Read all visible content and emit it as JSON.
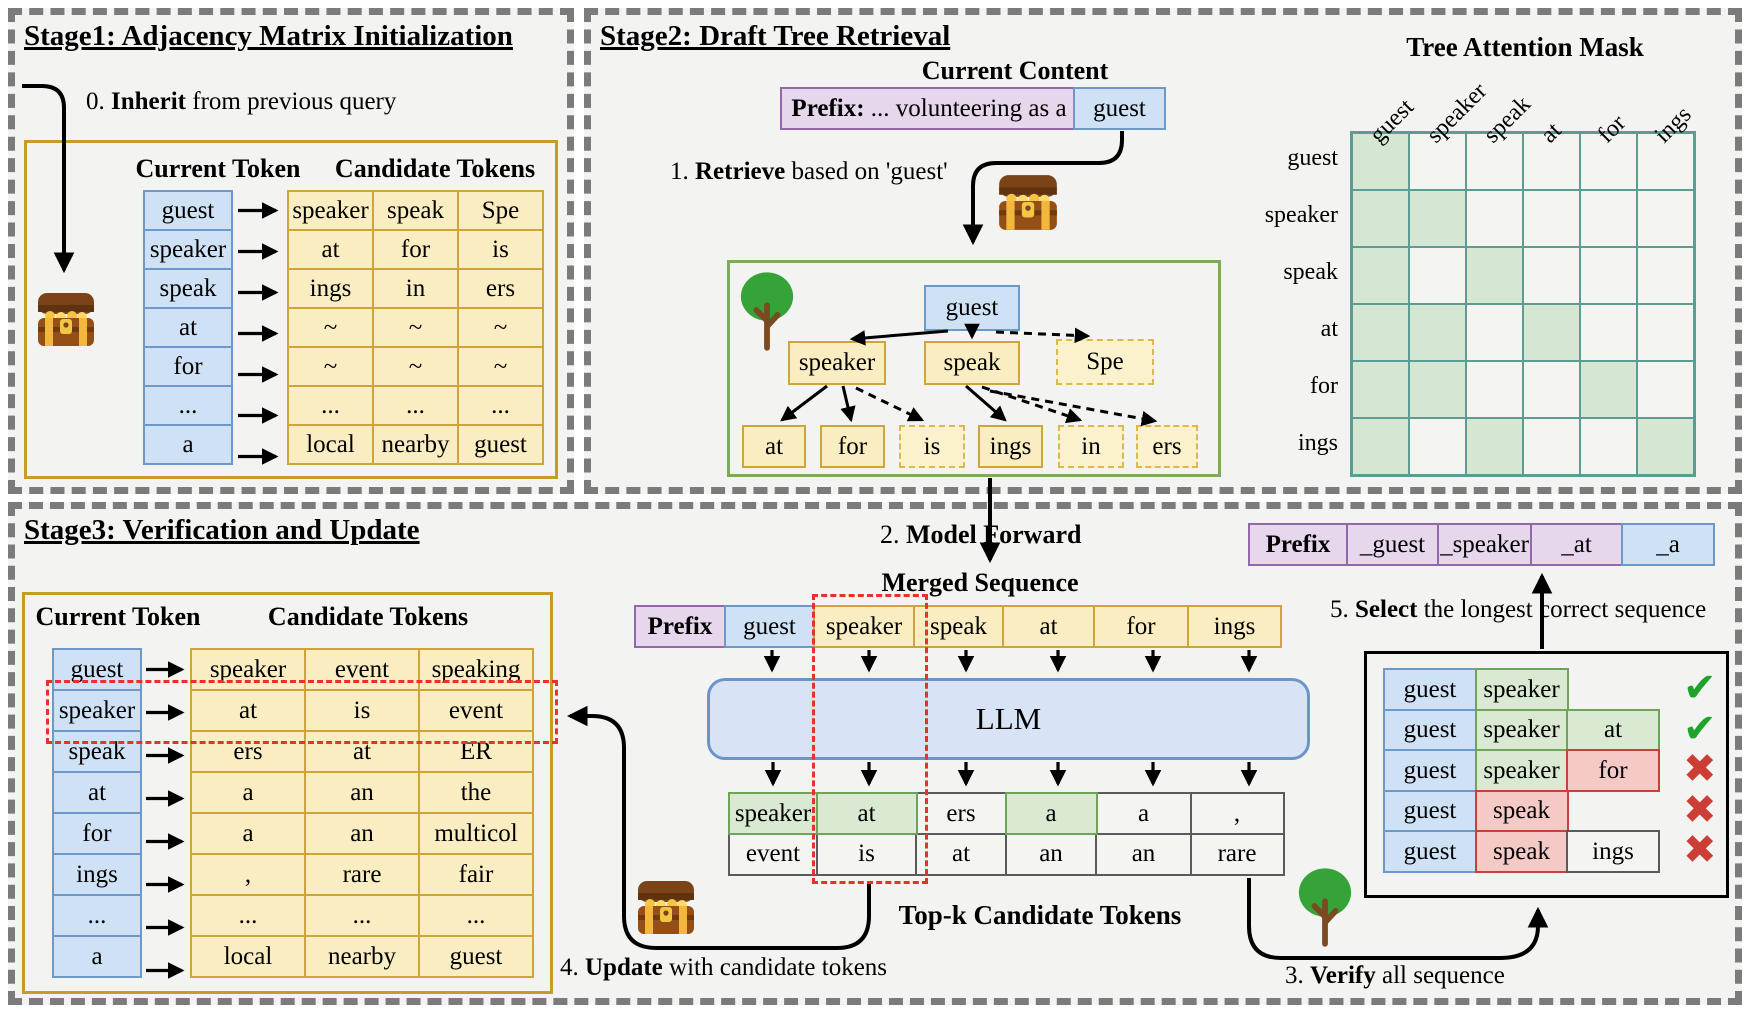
{
  "stage1": {
    "title": "Stage1: Adjacency Matrix Initialization",
    "step0": {
      "pre": "0. ",
      "bold": "Inherit",
      "post": " from previous query"
    },
    "table": {
      "col1_header": "Current Token",
      "col2_header": "Candidate Tokens",
      "rows": [
        {
          "token": "guest",
          "candidates": [
            "speaker",
            "speak",
            "Spe"
          ]
        },
        {
          "token": "speaker",
          "candidates": [
            "at",
            "for",
            "is"
          ]
        },
        {
          "token": "speak",
          "candidates": [
            "ings",
            "in",
            "ers"
          ]
        },
        {
          "token": "at",
          "candidates": [
            "~",
            "~",
            "~"
          ]
        },
        {
          "token": "for",
          "candidates": [
            "~",
            "~",
            "~"
          ]
        },
        {
          "token": "...",
          "candidates": [
            "...",
            "...",
            "..."
          ]
        },
        {
          "token": "a",
          "candidates": [
            "local",
            "nearby",
            "guest"
          ]
        }
      ]
    }
  },
  "stage2": {
    "title": "Stage2: Draft Tree Retrieval",
    "current_content_label": "Current Content",
    "prefix": {
      "bold": "Prefix:",
      "rest": " ... volunteering as a"
    },
    "prefix_token": "guest",
    "step1": {
      "pre": "1. ",
      "bold": "Retrieve",
      "post": " based on 'guest'"
    },
    "tree": {
      "root": "guest",
      "level1": [
        "speaker",
        "speak",
        "Spe"
      ],
      "level2": [
        "at",
        "for",
        "is",
        "ings",
        "in",
        "ers"
      ]
    },
    "mask": {
      "title": "Tree Attention Mask",
      "labels": [
        "guest",
        "speaker",
        "speak",
        "at",
        "for",
        "ings"
      ],
      "matrix": [
        [
          1,
          0,
          0,
          0,
          0,
          0
        ],
        [
          1,
          1,
          0,
          0,
          0,
          0
        ],
        [
          1,
          0,
          1,
          0,
          0,
          0
        ],
        [
          1,
          1,
          0,
          1,
          0,
          0
        ],
        [
          1,
          1,
          0,
          0,
          1,
          0
        ],
        [
          1,
          0,
          1,
          0,
          0,
          1
        ]
      ]
    }
  },
  "stage3": {
    "title": "Stage3: Verification and Update",
    "table": {
      "col1_header": "Current Token",
      "col2_header": "Candidate Tokens",
      "rows": [
        {
          "token": "guest",
          "candidates": [
            "speaker",
            "event",
            "speaking"
          ]
        },
        {
          "token": "speaker",
          "candidates": [
            "at",
            "is",
            "event"
          ]
        },
        {
          "token": "speak",
          "candidates": [
            "ers",
            "at",
            "ER"
          ]
        },
        {
          "token": "at",
          "candidates": [
            "a",
            "an",
            "the"
          ]
        },
        {
          "token": "for",
          "candidates": [
            "a",
            "an",
            "multicol"
          ]
        },
        {
          "token": "ings",
          "candidates": [
            ",",
            "rare",
            "fair"
          ]
        },
        {
          "token": "...",
          "candidates": [
            "...",
            "...",
            "..."
          ]
        },
        {
          "token": "a",
          "candidates": [
            "local",
            "nearby",
            "guest"
          ]
        }
      ]
    },
    "step2": {
      "pre": "2. ",
      "bold": "Model Forward",
      "post": ""
    },
    "merged_label": "Merged Sequence",
    "merged_tokens": [
      {
        "label": "Prefix",
        "style": "prefix"
      },
      {
        "label": "guest",
        "style": "blue"
      },
      {
        "label": "speaker",
        "style": "yellow"
      },
      {
        "label": "speak",
        "style": "yellow"
      },
      {
        "label": "at",
        "style": "yellow"
      },
      {
        "label": "for",
        "style": "yellow"
      },
      {
        "label": "ings",
        "style": "yellow"
      }
    ],
    "llm_label": "LLM",
    "topk": {
      "label": "Top-k Candidate Tokens",
      "rows": [
        [
          {
            "t": "speaker",
            "hl": true
          },
          {
            "t": "at",
            "hl": true
          },
          {
            "t": "ers",
            "hl": false
          },
          {
            "t": "a",
            "hl": true
          },
          {
            "t": "a",
            "hl": false
          },
          {
            "t": ",",
            "hl": false
          }
        ],
        [
          {
            "t": "event",
            "hl": false
          },
          {
            "t": "is",
            "hl": false
          },
          {
            "t": "at",
            "hl": false
          },
          {
            "t": "an",
            "hl": false
          },
          {
            "t": "an",
            "hl": false
          },
          {
            "t": "rare",
            "hl": false
          }
        ]
      ]
    },
    "step4": {
      "pre": "4. ",
      "bold": "Update",
      "post": " with candidate tokens"
    },
    "step3": {
      "pre": "3. ",
      "bold": "Verify",
      "post": " all sequence"
    },
    "step5": {
      "pre": "5. ",
      "bold": "Select",
      "post": " the longest correct sequence"
    },
    "result_tokens": [
      {
        "label": "Prefix",
        "style": "prefix"
      },
      {
        "label": "_guest",
        "style": "purple"
      },
      {
        "label": "_speaker",
        "style": "purple"
      },
      {
        "label": "_at",
        "style": "purple"
      },
      {
        "label": "_a",
        "style": "blue"
      }
    ],
    "verification": {
      "rows": [
        {
          "cells": [
            {
              "t": "guest",
              "c": "blue"
            },
            {
              "t": "speaker",
              "c": "green"
            }
          ],
          "verdict": "ok"
        },
        {
          "cells": [
            {
              "t": "guest",
              "c": "blue"
            },
            {
              "t": "speaker",
              "c": "green"
            },
            {
              "t": "at",
              "c": "green"
            }
          ],
          "verdict": "ok"
        },
        {
          "cells": [
            {
              "t": "guest",
              "c": "blue"
            },
            {
              "t": "speaker",
              "c": "green"
            },
            {
              "t": "for",
              "c": "red"
            }
          ],
          "verdict": "bad"
        },
        {
          "cells": [
            {
              "t": "guest",
              "c": "blue"
            },
            {
              "t": "speak",
              "c": "red"
            }
          ],
          "verdict": "bad"
        },
        {
          "cells": [
            {
              "t": "guest",
              "c": "blue"
            },
            {
              "t": "speak",
              "c": "red"
            },
            {
              "t": "ings",
              "c": "plain"
            }
          ],
          "verdict": "bad"
        }
      ]
    }
  },
  "icons": {
    "chest": "treasure-chest-icon",
    "tree": "tree-icon"
  },
  "colors": {
    "token_blue": "#cfe1f4",
    "token_yellow": "#fbedc2",
    "prefix_purple": "#e6d7ec",
    "mask_on_green": "#d5e7d3",
    "accept_green": "#d9e9d2",
    "reject_red": "#f5c9c6",
    "check_green": "#1ea32b",
    "cross_red": "#cc3e35",
    "highlight_red_dash": "#e8312a"
  }
}
